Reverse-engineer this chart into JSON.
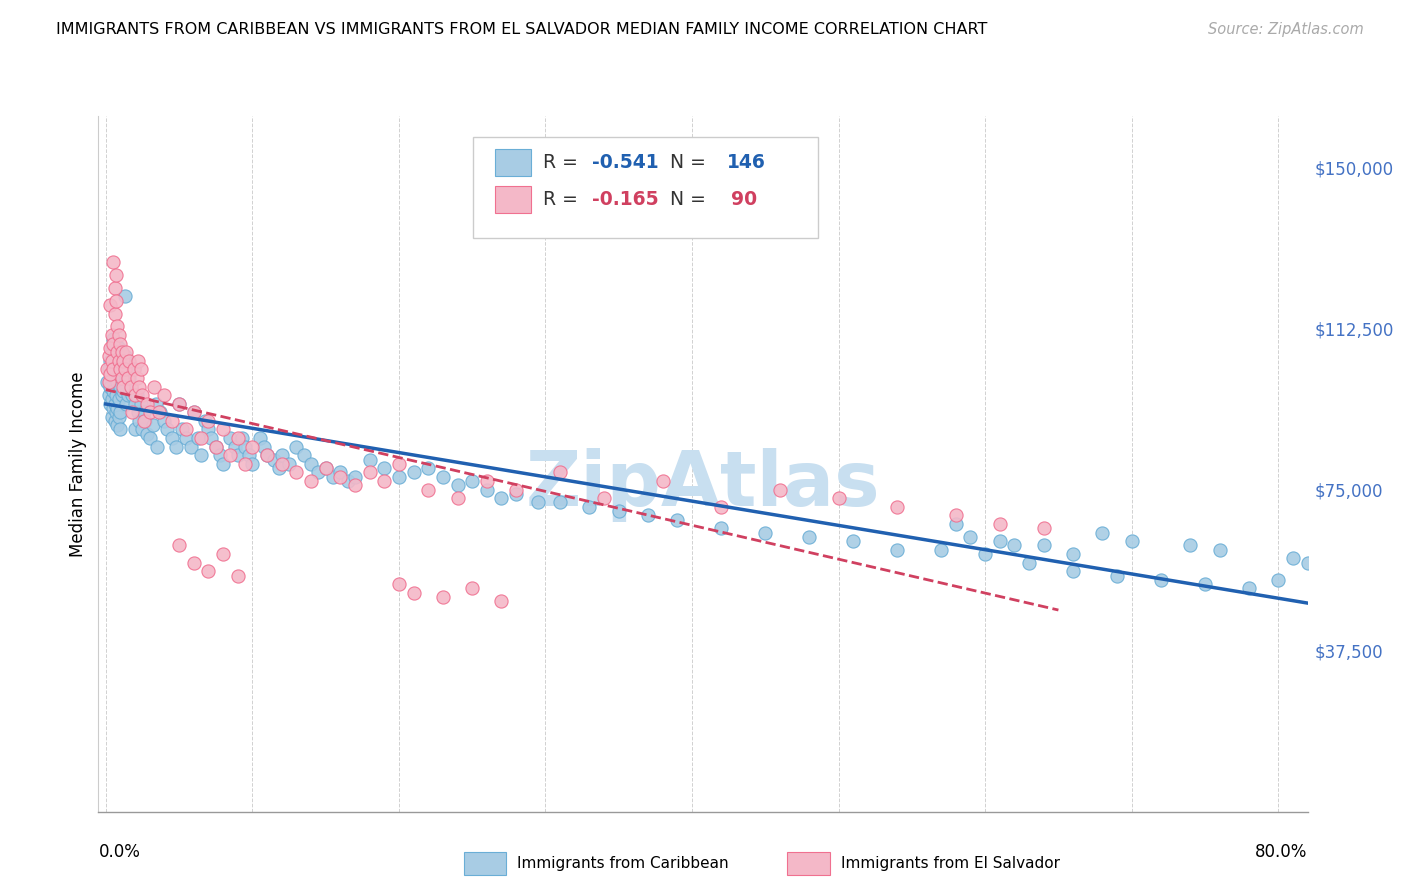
{
  "title": "IMMIGRANTS FROM CARIBBEAN VS IMMIGRANTS FROM EL SALVADOR MEDIAN FAMILY INCOME CORRELATION CHART",
  "source": "Source: ZipAtlas.com",
  "ylabel": "Median Family Income",
  "ytick_labels": [
    "$37,500",
    "$75,000",
    "$112,500",
    "$150,000"
  ],
  "ytick_values": [
    37500,
    75000,
    112500,
    150000
  ],
  "ylim": [
    0,
    162000
  ],
  "xlim": [
    -0.005,
    0.82
  ],
  "blue_color": "#a8cce4",
  "pink_color": "#f4b8c8",
  "blue_edge_color": "#6aaed6",
  "pink_edge_color": "#f07090",
  "blue_line_color": "#2060b0",
  "pink_line_color": "#d04060",
  "ytick_color": "#4472c4",
  "watermark": "ZipAtlas",
  "watermark_color": "#c8dff0",
  "legend_label_blue": "Immigrants from Caribbean",
  "legend_label_pink": "Immigrants from El Salvador",
  "blue_R": "-0.541",
  "blue_N": "146",
  "pink_R": "-0.165",
  "pink_N": "90",
  "blue_scatter_x": [
    0.001,
    0.002,
    0.002,
    0.003,
    0.003,
    0.003,
    0.004,
    0.004,
    0.004,
    0.004,
    0.005,
    0.005,
    0.005,
    0.005,
    0.006,
    0.006,
    0.006,
    0.006,
    0.007,
    0.007,
    0.007,
    0.007,
    0.008,
    0.008,
    0.008,
    0.008,
    0.009,
    0.009,
    0.009,
    0.009,
    0.01,
    0.01,
    0.01,
    0.01,
    0.011,
    0.011,
    0.012,
    0.012,
    0.013,
    0.013,
    0.014,
    0.014,
    0.015,
    0.015,
    0.016,
    0.017,
    0.018,
    0.019,
    0.02,
    0.02,
    0.021,
    0.022,
    0.023,
    0.024,
    0.025,
    0.026,
    0.027,
    0.028,
    0.03,
    0.032,
    0.034,
    0.035,
    0.037,
    0.04,
    0.042,
    0.045,
    0.048,
    0.05,
    0.052,
    0.055,
    0.058,
    0.06,
    0.063,
    0.065,
    0.068,
    0.07,
    0.072,
    0.075,
    0.078,
    0.08,
    0.085,
    0.088,
    0.09,
    0.093,
    0.095,
    0.098,
    0.1,
    0.105,
    0.108,
    0.11,
    0.115,
    0.118,
    0.12,
    0.125,
    0.13,
    0.135,
    0.14,
    0.145,
    0.15,
    0.155,
    0.16,
    0.165,
    0.17,
    0.18,
    0.19,
    0.2,
    0.21,
    0.22,
    0.23,
    0.24,
    0.25,
    0.26,
    0.27,
    0.28,
    0.295,
    0.31,
    0.33,
    0.35,
    0.37,
    0.39,
    0.42,
    0.45,
    0.48,
    0.51,
    0.54,
    0.57,
    0.6,
    0.63,
    0.66,
    0.69,
    0.72,
    0.75,
    0.78,
    0.8,
    0.81,
    0.82,
    0.74,
    0.76,
    0.68,
    0.7,
    0.64,
    0.66,
    0.58,
    0.61,
    0.59,
    0.62
  ],
  "blue_scatter_y": [
    100000,
    103000,
    97000,
    105000,
    99000,
    95000,
    108000,
    102000,
    96000,
    92000,
    110000,
    104000,
    98000,
    94000,
    107000,
    101000,
    95000,
    91000,
    109000,
    103000,
    97000,
    93000,
    106000,
    100000,
    94000,
    90000,
    108000,
    102000,
    96000,
    92000,
    105000,
    99000,
    93000,
    89000,
    103000,
    97000,
    104000,
    98000,
    120000,
    106000,
    101000,
    95000,
    103000,
    97000,
    101000,
    99000,
    97000,
    103000,
    95000,
    89000,
    97000,
    93000,
    91000,
    95000,
    89000,
    93000,
    91000,
    88000,
    87000,
    90000,
    95000,
    85000,
    93000,
    91000,
    89000,
    87000,
    85000,
    95000,
    89000,
    87000,
    85000,
    93000,
    87000,
    83000,
    91000,
    89000,
    87000,
    85000,
    83000,
    81000,
    87000,
    85000,
    83000,
    87000,
    85000,
    83000,
    81000,
    87000,
    85000,
    83000,
    82000,
    80000,
    83000,
    81000,
    85000,
    83000,
    81000,
    79000,
    80000,
    78000,
    79000,
    77000,
    78000,
    82000,
    80000,
    78000,
    79000,
    80000,
    78000,
    76000,
    77000,
    75000,
    73000,
    74000,
    72000,
    72000,
    71000,
    70000,
    69000,
    68000,
    66000,
    65000,
    64000,
    63000,
    61000,
    61000,
    60000,
    58000,
    56000,
    55000,
    54000,
    53000,
    52000,
    54000,
    59000,
    58000,
    62000,
    61000,
    65000,
    63000,
    62000,
    60000,
    67000,
    63000,
    64000,
    62000
  ],
  "pink_scatter_x": [
    0.001,
    0.002,
    0.002,
    0.003,
    0.003,
    0.003,
    0.004,
    0.004,
    0.005,
    0.005,
    0.005,
    0.006,
    0.006,
    0.007,
    0.007,
    0.008,
    0.008,
    0.009,
    0.009,
    0.01,
    0.01,
    0.011,
    0.011,
    0.012,
    0.012,
    0.013,
    0.014,
    0.015,
    0.016,
    0.017,
    0.018,
    0.019,
    0.02,
    0.021,
    0.022,
    0.023,
    0.024,
    0.025,
    0.026,
    0.028,
    0.03,
    0.033,
    0.036,
    0.04,
    0.045,
    0.05,
    0.055,
    0.06,
    0.065,
    0.07,
    0.075,
    0.08,
    0.085,
    0.09,
    0.095,
    0.1,
    0.11,
    0.12,
    0.13,
    0.14,
    0.15,
    0.16,
    0.17,
    0.18,
    0.19,
    0.2,
    0.22,
    0.24,
    0.26,
    0.28,
    0.31,
    0.34,
    0.38,
    0.42,
    0.46,
    0.5,
    0.54,
    0.58,
    0.61,
    0.64,
    0.2,
    0.21,
    0.23,
    0.25,
    0.27,
    0.05,
    0.06,
    0.07,
    0.08,
    0.09
  ],
  "pink_scatter_y": [
    103000,
    106000,
    100000,
    108000,
    102000,
    118000,
    111000,
    105000,
    109000,
    103000,
    128000,
    122000,
    116000,
    125000,
    119000,
    113000,
    107000,
    111000,
    105000,
    109000,
    103000,
    107000,
    101000,
    105000,
    99000,
    103000,
    107000,
    101000,
    105000,
    99000,
    93000,
    103000,
    97000,
    101000,
    105000,
    99000,
    103000,
    97000,
    91000,
    95000,
    93000,
    99000,
    93000,
    97000,
    91000,
    95000,
    89000,
    93000,
    87000,
    91000,
    85000,
    89000,
    83000,
    87000,
    81000,
    85000,
    83000,
    81000,
    79000,
    77000,
    80000,
    78000,
    76000,
    79000,
    77000,
    81000,
    75000,
    73000,
    77000,
    75000,
    79000,
    73000,
    77000,
    71000,
    75000,
    73000,
    71000,
    69000,
    67000,
    66000,
    53000,
    51000,
    50000,
    52000,
    49000,
    62000,
    58000,
    56000,
    60000,
    55000
  ]
}
